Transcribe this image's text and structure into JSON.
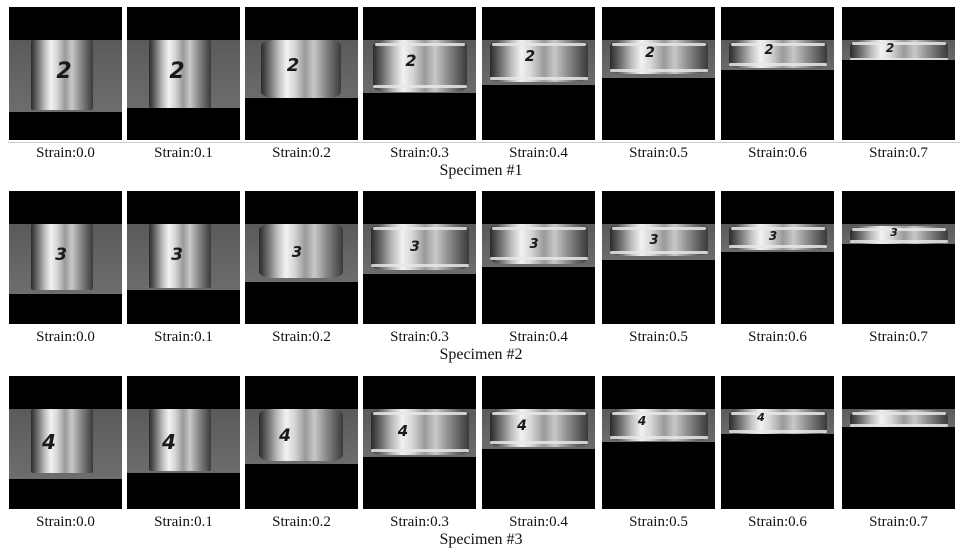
{
  "specimens": [
    {
      "title": "Specimen #1",
      "mark": "2",
      "frames": [
        {
          "caption": "Strain:0.0"
        },
        {
          "caption": "Strain:0.1"
        },
        {
          "caption": "Strain:0.2"
        },
        {
          "caption": "Strain:0.3"
        },
        {
          "caption": "Strain:0.4"
        },
        {
          "caption": "Strain:0.5"
        },
        {
          "caption": "Strain:0.6"
        },
        {
          "caption": "Strain:0.7"
        }
      ]
    },
    {
      "title": "Specimen #2",
      "mark": "3",
      "frames": [
        {
          "caption": "Strain:0.0"
        },
        {
          "caption": "Strain:0.1"
        },
        {
          "caption": "Strain:0.2"
        },
        {
          "caption": "Strain:0.3"
        },
        {
          "caption": "Strain:0.4"
        },
        {
          "caption": "Strain:0.5"
        },
        {
          "caption": "Strain:0.6"
        },
        {
          "caption": "Strain:0.7"
        }
      ]
    },
    {
      "title": "Specimen #3",
      "mark": "4",
      "frames": [
        {
          "caption": "Strain:0.0"
        },
        {
          "caption": "Strain:0.1"
        },
        {
          "caption": "Strain:0.2"
        },
        {
          "caption": "Strain:0.3"
        },
        {
          "caption": "Strain:0.4"
        },
        {
          "caption": "Strain:0.5"
        },
        {
          "caption": "Strain:0.6"
        },
        {
          "caption": "Strain:0.7"
        }
      ]
    }
  ]
}
